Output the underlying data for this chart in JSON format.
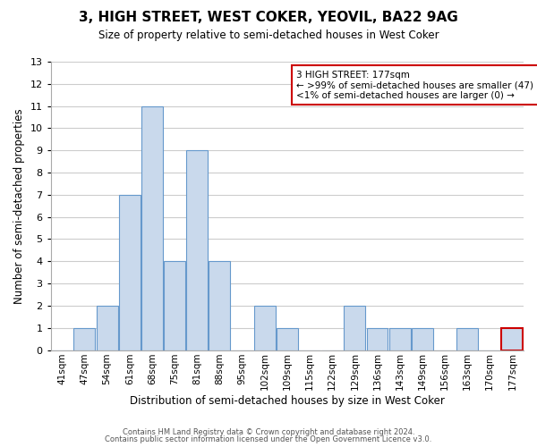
{
  "title": "3, HIGH STREET, WEST COKER, YEOVIL, BA22 9AG",
  "subtitle": "Size of property relative to semi-detached houses in West Coker",
  "xlabel": "Distribution of semi-detached houses by size in West Coker",
  "ylabel": "Number of semi-detached properties",
  "bin_labels": [
    "41sqm",
    "47sqm",
    "54sqm",
    "61sqm",
    "68sqm",
    "75sqm",
    "81sqm",
    "88sqm",
    "95sqm",
    "102sqm",
    "109sqm",
    "115sqm",
    "122sqm",
    "129sqm",
    "136sqm",
    "143sqm",
    "149sqm",
    "156sqm",
    "163sqm",
    "170sqm",
    "177sqm"
  ],
  "bar_values": [
    0,
    1,
    2,
    7,
    11,
    4,
    9,
    4,
    0,
    2,
    1,
    0,
    0,
    2,
    1,
    1,
    1,
    0,
    1,
    0,
    1
  ],
  "bar_color": "#c9d9ec",
  "bar_edge_color": "#6699cc",
  "highlight_bar_index": 20,
  "highlight_bar_edge_color": "#cc0000",
  "ylim": [
    0,
    13
  ],
  "yticks": [
    0,
    1,
    2,
    3,
    4,
    5,
    6,
    7,
    8,
    9,
    10,
    11,
    12,
    13
  ],
  "annotation_title": "3 HIGH STREET: 177sqm",
  "annotation_line1": "← >99% of semi-detached houses are smaller (47)",
  "annotation_line2": "<1% of semi-detached houses are larger (0) →",
  "annotation_edge_color": "#cc0000",
  "footer_line1": "Contains HM Land Registry data © Crown copyright and database right 2024.",
  "footer_line2": "Contains public sector information licensed under the Open Government Licence v3.0.",
  "grid_color": "#cccccc",
  "background_color": "#ffffff"
}
